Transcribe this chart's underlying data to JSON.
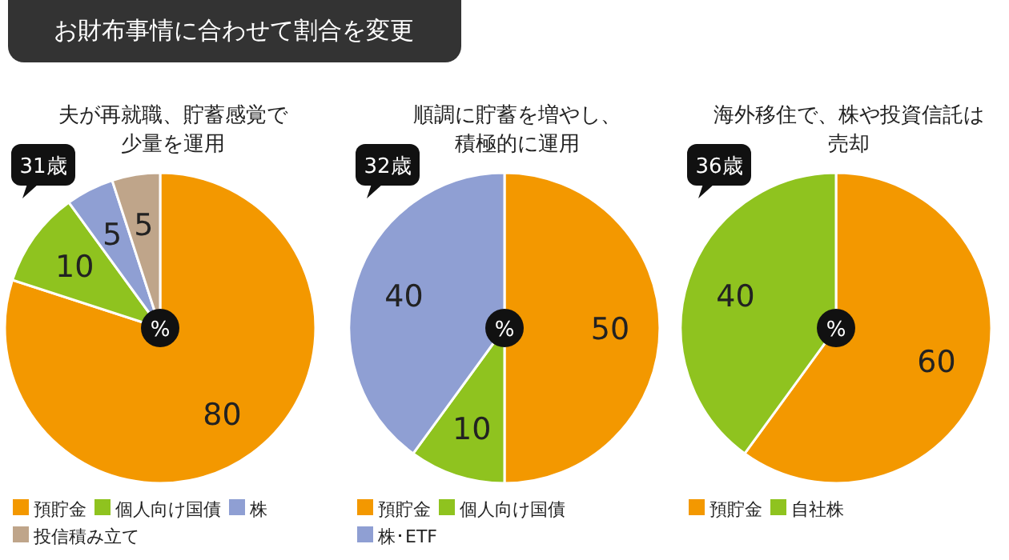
{
  "chart_data": [
    {
      "type": "pie",
      "title": "夫が再就職、貯蓄感覚で少量を運用",
      "annotations": [
        "お財布事情に合わせて割合を変更",
        "31歳",
        "%"
      ],
      "categories": [
        "預貯金",
        "個人向け国債",
        "株",
        "投信積み立て"
      ],
      "values": [
        80,
        10,
        5,
        5
      ],
      "colors": [
        "#f39800",
        "#8fc31f",
        "#8f9fd3",
        "#bfa58a"
      ],
      "data_labels": true,
      "legend": "bottom"
    },
    {
      "type": "pie",
      "title": "順調に貯蓄を増やし、積極的に運用",
      "annotations": [
        "32歳",
        "%"
      ],
      "categories": [
        "預貯金",
        "個人向け国債",
        "株･ETF"
      ],
      "values": [
        50,
        10,
        40
      ],
      "colors": [
        "#f39800",
        "#8fc31f",
        "#8f9fd3"
      ],
      "data_labels": true,
      "legend": "bottom"
    },
    {
      "type": "pie",
      "title": "海外移住で、株や投資信託は売却",
      "annotations": [
        "36歳",
        "%"
      ],
      "categories": [
        "預貯金",
        "自社株"
      ],
      "values": [
        60,
        40
      ],
      "colors": [
        "#f39800",
        "#8fc31f"
      ],
      "data_labels": true,
      "legend": "bottom"
    }
  ]
}
